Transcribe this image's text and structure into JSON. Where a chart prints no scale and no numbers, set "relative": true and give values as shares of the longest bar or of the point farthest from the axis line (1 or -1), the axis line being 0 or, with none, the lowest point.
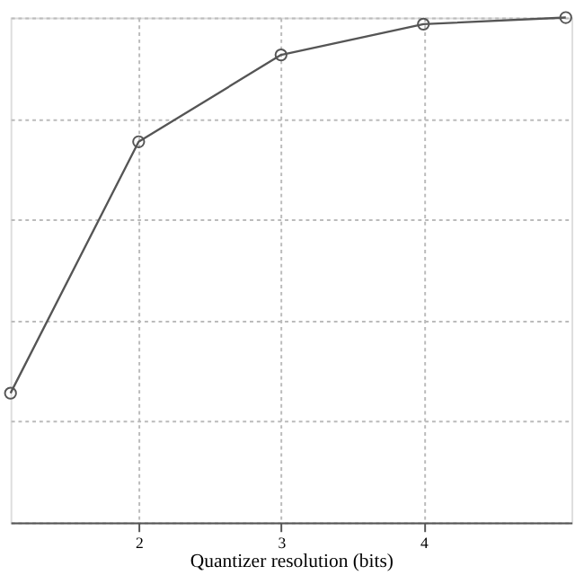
{
  "chart_data": {
    "type": "line",
    "xlabel": "Quantizer resolution (bits)",
    "relative": true,
    "x": [
      1.1,
      2,
      3,
      4,
      5
    ],
    "series": [
      {
        "color": "#555555",
        "values": [
          0.256,
          0.754,
          0.926,
          0.987,
          1
        ]
      }
    ],
    "xlim": [
      1.1,
      5.04
    ],
    "xticks": [
      2,
      3,
      4
    ],
    "tick_labels": "x",
    "grid": true,
    "marker": "circle",
    "line_style": "solid"
  }
}
